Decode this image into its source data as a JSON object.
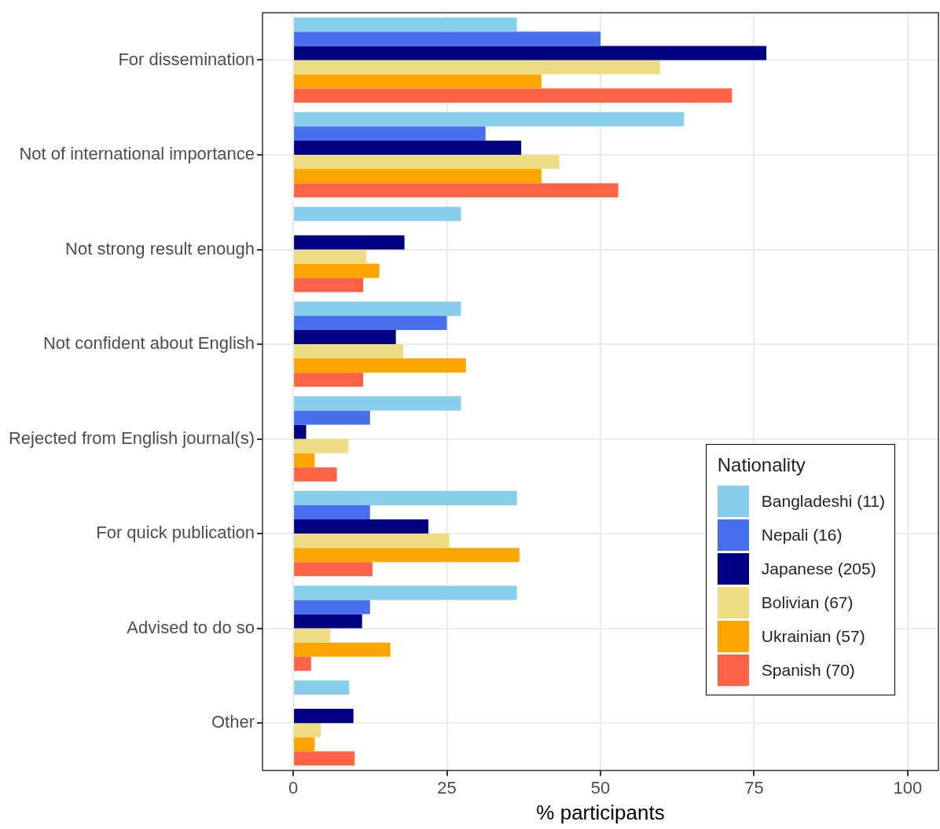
{
  "chart_data": {
    "type": "bar",
    "orientation": "horizontal",
    "xlabel": "% participants",
    "legend_title": "Nationality",
    "legend": "bottom right",
    "grid": true,
    "categories": [
      "For dissemination",
      "Not of international importance",
      "Not strong result enough",
      "Not confident about English",
      "Rejected from English journal(s)",
      "For quick publication",
      "Advised to do so",
      "Other"
    ],
    "xlim": [
      -5,
      105
    ],
    "xticks": [
      0,
      25,
      50,
      75,
      100
    ],
    "series": [
      {
        "name": "Bangladeshi (11)",
        "color": "#87ceeb",
        "values": [
          36.4,
          63.6,
          27.3,
          27.3,
          27.3,
          36.4,
          36.4,
          9.1
        ]
      },
      {
        "name": "Nepali (16)",
        "color": "#4870ec",
        "values": [
          50,
          31.3,
          0,
          25,
          12.5,
          12.5,
          12.5,
          0
        ]
      },
      {
        "name": "Japanese (205)",
        "color": "#000080",
        "values": [
          77.0,
          37.1,
          18.1,
          16.7,
          2.1,
          22.0,
          11.2,
          9.8
        ]
      },
      {
        "name": "Bolivian (67)",
        "color": "#eedd82",
        "values": [
          59.7,
          43.3,
          11.9,
          17.9,
          9.0,
          25.4,
          6.0,
          4.5
        ]
      },
      {
        "name": "Ukrainian (57)",
        "color": "#ffa500",
        "values": [
          40.4,
          40.4,
          14.0,
          28.1,
          3.5,
          36.8,
          15.8,
          3.5
        ]
      },
      {
        "name": "Spanish (70)",
        "color": "#ff6347",
        "values": [
          71.4,
          52.9,
          11.4,
          11.4,
          7.1,
          12.9,
          2.9,
          10.0
        ]
      }
    ]
  }
}
